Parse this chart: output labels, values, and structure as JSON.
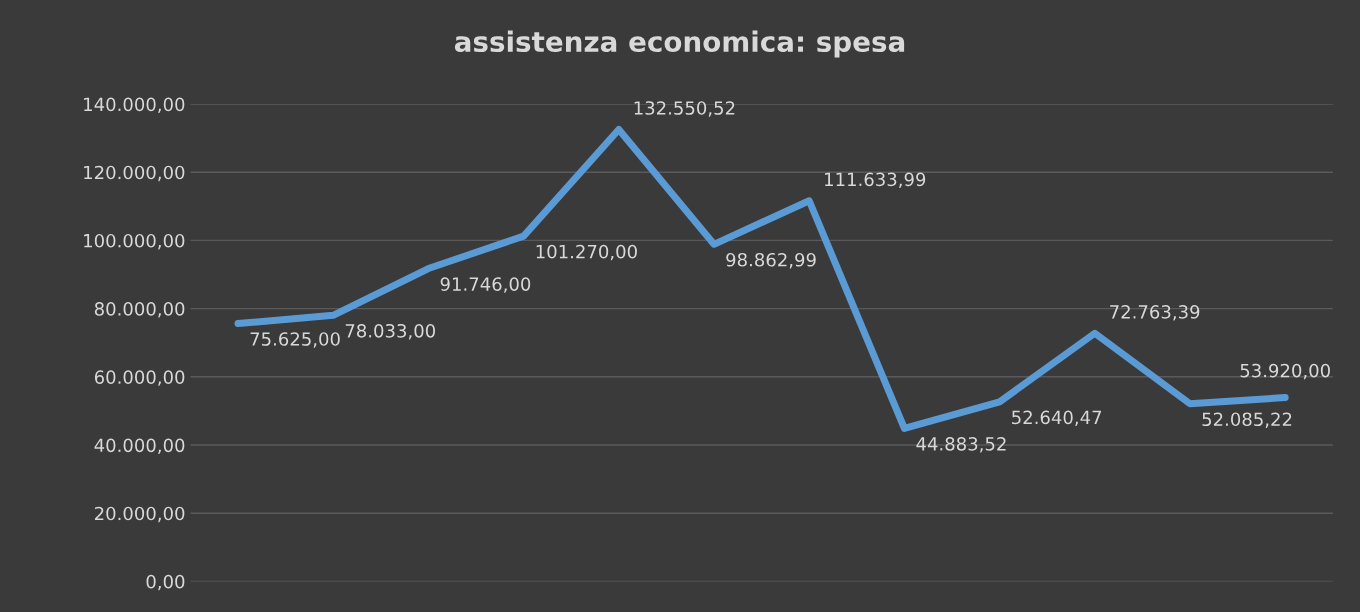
{
  "chart_data": {
    "type": "line",
    "title": "assistenza economica: spesa",
    "categories": [
      null,
      null,
      null,
      null,
      null,
      null,
      null,
      null,
      null,
      null,
      null,
      null
    ],
    "series": [
      {
        "color": "#5b9bd5",
        "values": [
          75625.0,
          78033.0,
          91746.0,
          101270.0,
          132550.52,
          98862.99,
          111633.99,
          44883.52,
          52640.47,
          72763.39,
          52085.22,
          53920.0
        ]
      }
    ],
    "value_labels": [
      "75.625,00",
      "78.033,00",
      "91.746,00",
      "101.270,00",
      "132.550,52",
      "98.862,99",
      "111.633,99",
      "44.883,52",
      "52.640,47",
      "72.763,39",
      "52.085,22",
      "53.920,00"
    ],
    "ylim": [
      0,
      140000
    ],
    "yticks": [
      {
        "value": 0,
        "label": "0,00"
      },
      {
        "value": 20000,
        "label": "20.000,00"
      },
      {
        "value": 40000,
        "label": "40.000,00"
      },
      {
        "value": 60000,
        "label": "60.000,00"
      },
      {
        "value": 80000,
        "label": "80.000,00"
      },
      {
        "value": 100000,
        "label": "100.000,00"
      },
      {
        "value": 120000,
        "label": "120.000,00"
      },
      {
        "value": 140000,
        "label": "140.000,00"
      }
    ],
    "grid": "y",
    "marker": "none",
    "line_style": "solid",
    "tick_labels": "y"
  }
}
